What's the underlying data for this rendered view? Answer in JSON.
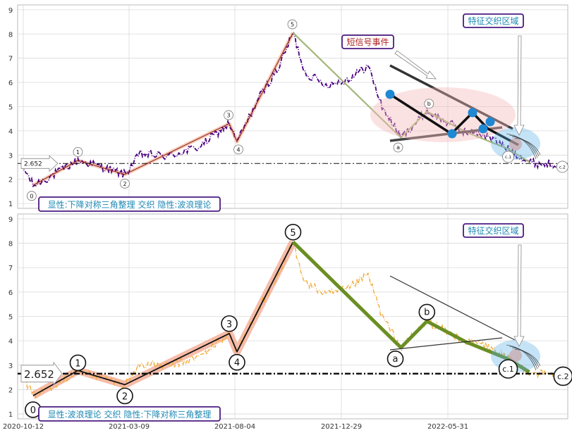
{
  "chart_data": [
    {
      "type": "line",
      "panel": "top",
      "ylim": [
        0.8,
        9.2
      ],
      "yticks": [
        1,
        2,
        3,
        4,
        5,
        6,
        7,
        8,
        9
      ],
      "xtick_labels": [
        "2020-10-12",
        "2021-03-09",
        "2021-08-04",
        "2021-12-29",
        "2022-05-31"
      ],
      "x_range_days": [
        0,
        785
      ],
      "reference_value_label": "2.652",
      "reference_value": 2.652,
      "grid": true,
      "price_color": "#4b0082",
      "wave_color": "#8b1a1a",
      "wave_band_color": "#f5c2a8",
      "abc_color": "#a4b77a",
      "wave_points": [
        {
          "label": "0",
          "day": 22,
          "value": 1.75
        },
        {
          "label": "1",
          "day": 86,
          "value": 2.78
        },
        {
          "label": "2",
          "day": 153,
          "value": 2.2
        },
        {
          "label": "3",
          "day": 302,
          "value": 4.3
        },
        {
          "label": "4",
          "day": 313,
          "value": 3.55
        },
        {
          "label": "5",
          "day": 393,
          "value": 8.05
        }
      ],
      "abc_points": [
        {
          "label": "",
          "day": 393,
          "value": 8.05
        },
        {
          "label": "a",
          "day": 547,
          "value": 3.72
        },
        {
          "label": "b",
          "day": 584,
          "value": 4.8
        },
        {
          "label": "",
          "day": 640,
          "value": 3.95
        },
        {
          "label": "c.1",
          "day": 700,
          "value": 3.25
        },
        {
          "label": "c.2",
          "day": 730,
          "value": 2.72
        }
      ],
      "annotations": {
        "bottom_text": "显性:下降对称三角整理 交织 隐性:波浪理论",
        "region_text": "特征交织区域",
        "signal_text": "短信号事件"
      }
    },
    {
      "type": "line",
      "panel": "bottom",
      "ylim": [
        0.8,
        9.2
      ],
      "yticks": [
        1,
        2,
        3,
        4,
        5,
        6,
        7,
        8,
        9
      ],
      "xtick_labels": [
        "2020-10-12",
        "2021-03-09",
        "2021-08-04",
        "2021-12-29",
        "2022-05-31"
      ],
      "x_range_days": [
        0,
        785
      ],
      "reference_value_label": "2.652",
      "reference_value": 2.652,
      "grid": true,
      "price_color": "#f0a830",
      "wave_color": "#111111",
      "wave_band_color": "#f5b09a",
      "abc_color": "#6b8e23",
      "wave_points": [
        {
          "label": "0",
          "day": 22,
          "value": 1.75
        },
        {
          "label": "1",
          "day": 86,
          "value": 2.78
        },
        {
          "label": "2",
          "day": 153,
          "value": 2.2
        },
        {
          "label": "3",
          "day": 302,
          "value": 4.3
        },
        {
          "label": "4",
          "day": 313,
          "value": 3.55
        },
        {
          "label": "5",
          "day": 393,
          "value": 8.05
        }
      ],
      "abc_points": [
        {
          "label": "",
          "day": 393,
          "value": 8.05
        },
        {
          "label": "a",
          "day": 547,
          "value": 3.72
        },
        {
          "label": "b",
          "day": 584,
          "value": 4.8
        },
        {
          "label": "",
          "day": 640,
          "value": 3.95
        },
        {
          "label": "c.1",
          "day": 700,
          "value": 3.25
        },
        {
          "label": "c.2",
          "day": 730,
          "value": 2.72
        }
      ],
      "annotations": {
        "bottom_text": "显性:波浪理论 交织 隐性:下降对称三角整理",
        "region_text": "特征交织区域"
      }
    }
  ]
}
